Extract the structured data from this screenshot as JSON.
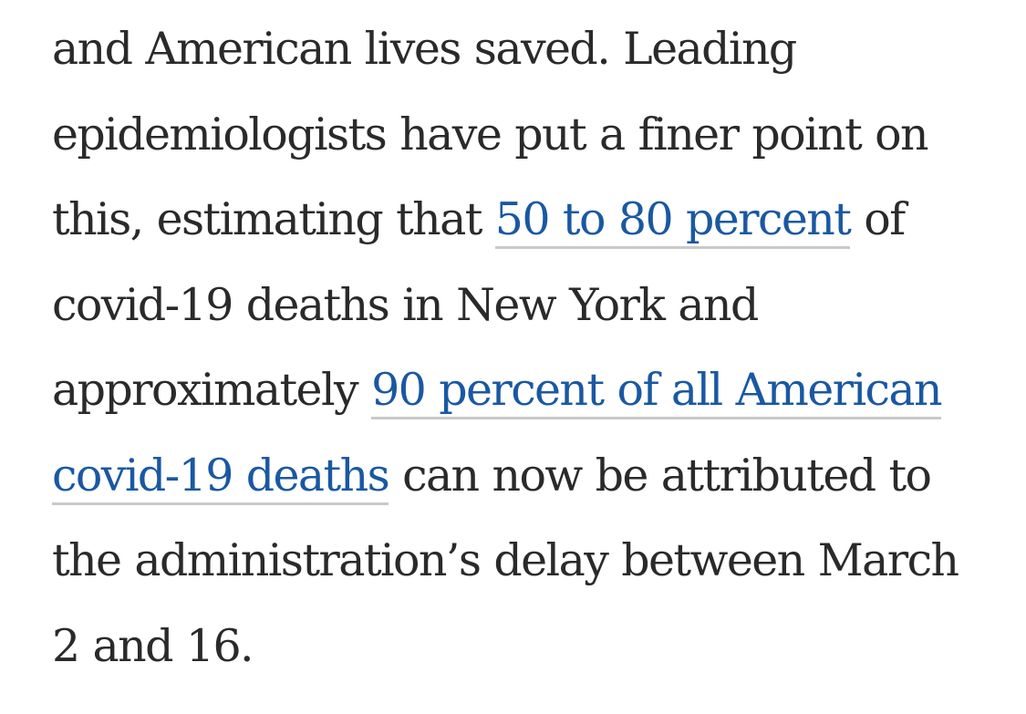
{
  "article": {
    "line1": "and American lives saved. Leading",
    "line2": "epidemiologists have put a finer point on",
    "line3_before": "this, estimating that ",
    "link1": "50 to 80 percent",
    "line3_after": " of",
    "line4": "covid-19 deaths in New York and",
    "line5_before": "approximately ",
    "link2_part1": "90 percent of all American",
    "link2_part2": "covid-19 deaths",
    "line6_after": " can now be attributed to",
    "line7": "the administration’s delay between March",
    "line8": "2 and 16."
  },
  "colors": {
    "text": "#2a2a2a",
    "link": "#1a58a2",
    "link_underline": "#c9c9c9",
    "background": "#ffffff"
  }
}
